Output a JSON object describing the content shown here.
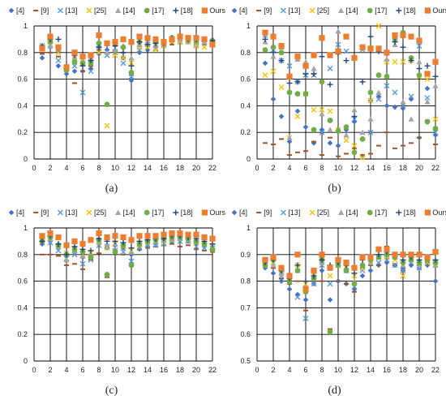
{
  "legend": [
    {
      "label": "[4]",
      "marker": "diamond",
      "color": "#4472C4"
    },
    {
      "label": "[9]",
      "marker": "dash",
      "color": "#A5502A"
    },
    {
      "label": "[13]",
      "marker": "x",
      "color": "#5B9BD5"
    },
    {
      "label": "[25]",
      "marker": "x",
      "color": "#F4C20D"
    },
    {
      "label": "[14]",
      "marker": "triangle",
      "color": "#A5A5A5"
    },
    {
      "label": "[17]",
      "marker": "circle",
      "color": "#70AD47"
    },
    {
      "label": "[18]",
      "marker": "plus",
      "color": "#264478"
    },
    {
      "label": "Ours",
      "marker": "square",
      "color": "#ED7D31"
    }
  ],
  "chart_data": [
    {
      "type": "scatter",
      "id": "a",
      "caption": "(a)",
      "xlim": [
        0,
        22
      ],
      "ylim": [
        0,
        1
      ],
      "xticks": [
        "0",
        "2",
        "4",
        "6",
        "8",
        "10",
        "12",
        "14",
        "16",
        "18",
        "20",
        "22"
      ],
      "yticks": [
        "0",
        "0.2",
        "0.4",
        "0.6",
        "0.8",
        "1"
      ],
      "x": [
        1,
        2,
        3,
        4,
        5,
        6,
        7,
        8,
        9,
        10,
        11,
        12,
        13,
        14,
        15,
        16,
        17,
        18,
        19,
        20,
        21,
        22
      ],
      "series": [
        {
          "name": "[4]",
          "values": [
            0.76,
            0.84,
            0.7,
            0.64,
            0.66,
            0.66,
            0.68,
            0.79,
            0.82,
            0.81,
            0.76,
            0.59,
            0.8,
            0.82,
            0.84,
            0.86,
            0.88,
            0.89,
            0.88,
            0.87,
            0.89,
            0.87
          ]
        },
        {
          "name": "[9]",
          "values": [
            0.79,
            0.8,
            0.77,
            0.66,
            0.57,
            0.66,
            0.7,
            0.82,
            0.4,
            0.82,
            0.8,
            0.63,
            0.85,
            0.85,
            0.85,
            0.87,
            0.86,
            0.87,
            0.88,
            0.86,
            0.86,
            0.85
          ]
        },
        {
          "name": "[13]",
          "values": [
            0.85,
            0.86,
            0.74,
            0.68,
            0.7,
            0.5,
            0.66,
            0.86,
            0.78,
            0.8,
            0.72,
            0.62,
            0.82,
            0.86,
            0.83,
            0.86,
            0.88,
            0.88,
            0.88,
            0.86,
            0.87,
            0.86
          ]
        },
        {
          "name": "[25]",
          "values": [
            0.84,
            0.88,
            0.8,
            0.69,
            0.76,
            0.72,
            0.75,
            0.8,
            0.25,
            0.78,
            0.76,
            0.72,
            0.84,
            0.84,
            0.82,
            0.85,
            0.88,
            0.88,
            0.88,
            0.85,
            0.84,
            0.86
          ]
        },
        {
          "name": "[14]",
          "values": [
            0.83,
            0.85,
            0.82,
            0.69,
            0.77,
            0.74,
            0.76,
            0.84,
            0.8,
            0.82,
            0.85,
            0.76,
            0.86,
            0.87,
            0.86,
            0.87,
            0.9,
            0.9,
            0.89,
            0.88,
            0.88,
            0.88
          ]
        },
        {
          "name": "[17]",
          "values": [
            0.84,
            0.88,
            0.83,
            0.67,
            0.73,
            0.72,
            0.72,
            0.87,
            0.41,
            0.86,
            0.84,
            0.65,
            0.88,
            0.9,
            0.88,
            0.88,
            0.91,
            0.92,
            0.9,
            0.89,
            0.9,
            0.89
          ]
        },
        {
          "name": "[18]",
          "values": [
            0.85,
            0.9,
            0.9,
            0.7,
            0.78,
            0.7,
            0.74,
            0.84,
            0.86,
            0.85,
            0.8,
            0.7,
            0.88,
            0.86,
            0.87,
            0.87,
            0.91,
            0.93,
            0.9,
            0.9,
            0.9,
            0.89
          ]
        },
        {
          "name": "Ours",
          "values": [
            0.83,
            0.92,
            0.84,
            0.69,
            0.8,
            0.77,
            0.78,
            0.93,
            0.87,
            0.88,
            0.9,
            0.88,
            0.92,
            0.91,
            0.9,
            0.88,
            0.9,
            0.92,
            0.91,
            0.91,
            0.9,
            0.86
          ]
        }
      ]
    },
    {
      "type": "scatter",
      "id": "b",
      "caption": "(b)",
      "xlim": [
        0,
        22
      ],
      "ylim": [
        0,
        1
      ],
      "xticks": [
        "0",
        "2",
        "4",
        "6",
        "8",
        "10",
        "12",
        "14",
        "16",
        "18",
        "20",
        "22"
      ],
      "yticks": [
        "0",
        "0.2",
        "0.4",
        "0.6",
        "0.8",
        "1"
      ],
      "x": [
        1,
        2,
        3,
        4,
        5,
        6,
        7,
        8,
        9,
        10,
        11,
        12,
        13,
        14,
        15,
        16,
        17,
        18,
        19,
        20,
        21,
        22
      ],
      "series": [
        {
          "name": "[4]",
          "values": [
            0.72,
            0.45,
            0.32,
            0.13,
            0.36,
            0.24,
            0.12,
            0.22,
            0.12,
            0.1,
            0.22,
            0.28,
            0.02,
            0.44,
            0.47,
            0.4,
            0.39,
            0.38,
            0.45,
            0.16,
            0.53,
            0.18
          ]
        },
        {
          "name": "[9]",
          "values": [
            0.12,
            0.11,
            0.15,
            0.03,
            0.05,
            0.06,
            0.13,
            0.03,
            0.16,
            0.02,
            0.04,
            0.08,
            0.03,
            0.04,
            0.1,
            0.2,
            0.08,
            0.1,
            0.12,
            0.16,
            0.29,
            0.11
          ]
        },
        {
          "name": "[13]",
          "values": [
            0.93,
            0.82,
            0.74,
            0.7,
            0.58,
            0.63,
            0.63,
            0.2,
            0.68,
            0.86,
            0.81,
            0.3,
            0.82,
            0.2,
            0.45,
            0.55,
            0.5,
            0.4,
            0.47,
            0.85,
            0.46,
            0.2
          ]
        },
        {
          "name": "[25]",
          "values": [
            0.63,
            0.66,
            0.54,
            0.16,
            0.32,
            0.49,
            0.37,
            0.37,
            0.36,
            0.22,
            0.14,
            0.1,
            0.01,
            0.44,
            1.0,
            0.73,
            0.73,
            0.73,
            0.74,
            0.62,
            0.6,
            0.3
          ]
        },
        {
          "name": "[14]",
          "values": [
            0.88,
            0.77,
            0.84,
            0.16,
            0.75,
            0.73,
            0.68,
            0.34,
            0.22,
            0.96,
            0.18,
            0.37,
            0.2,
            0.3,
            0.5,
            0.75,
            0.86,
            0.43,
            0.3,
            0.73,
            0.43,
            0.55
          ]
        },
        {
          "name": "[17]",
          "values": [
            0.82,
            0.84,
            0.8,
            0.5,
            0.49,
            0.49,
            0.22,
            0.58,
            0.29,
            0.21,
            0.24,
            0.05,
            0.15,
            0.5,
            0.63,
            0.62,
            0.9,
            0.95,
            0.76,
            0.63,
            0.28,
            0.23
          ]
        },
        {
          "name": "[18]",
          "values": [
            0.9,
            0.8,
            0.74,
            0.57,
            0.58,
            0.64,
            0.64,
            0.77,
            0.56,
            0.79,
            0.74,
            0.32,
            0.58,
            0.92,
            0.81,
            0.8,
            0.88,
            0.84,
            0.74,
            0.68,
            0.7,
            0.62
          ]
        },
        {
          "name": "Ours",
          "values": [
            0.95,
            0.92,
            0.85,
            0.62,
            0.77,
            0.7,
            0.78,
            0.91,
            0.78,
            0.81,
            0.92,
            0.76,
            0.84,
            0.83,
            0.83,
            0.8,
            0.93,
            0.93,
            0.92,
            0.89,
            0.64,
            0.73
          ]
        }
      ]
    },
    {
      "type": "scatter",
      "id": "c",
      "caption": "(c)",
      "xlim": [
        0,
        22
      ],
      "ylim": [
        0,
        1
      ],
      "xticks": [
        "0",
        "2",
        "4",
        "6",
        "8",
        "10",
        "12",
        "14",
        "16",
        "18",
        "20",
        "22"
      ],
      "yticks": [
        "0",
        "0.2",
        "0.4",
        "0.6",
        "0.8",
        "1"
      ],
      "x": [
        1,
        2,
        3,
        4,
        5,
        6,
        7,
        8,
        9,
        10,
        11,
        12,
        13,
        14,
        15,
        16,
        17,
        18,
        19,
        20,
        21,
        22
      ],
      "series": [
        {
          "name": "[4]",
          "values": [
            0.88,
            0.9,
            0.85,
            0.79,
            0.82,
            0.78,
            0.8,
            0.88,
            0.85,
            0.87,
            0.85,
            0.8,
            0.84,
            0.86,
            0.88,
            0.9,
            0.9,
            0.91,
            0.9,
            0.88,
            0.86,
            0.84
          ]
        },
        {
          "name": "[9]",
          "values": [
            0.8,
            0.8,
            0.79,
            0.72,
            0.73,
            0.69,
            0.76,
            0.81,
            0.63,
            0.83,
            0.8,
            0.73,
            0.84,
            0.85,
            0.86,
            0.87,
            0.88,
            0.86,
            0.87,
            0.84,
            0.83,
            0.82
          ]
        },
        {
          "name": "[13]",
          "values": [
            0.89,
            0.89,
            0.83,
            0.77,
            0.8,
            0.73,
            0.76,
            0.87,
            0.86,
            0.83,
            0.82,
            0.75,
            0.85,
            0.87,
            0.87,
            0.88,
            0.9,
            0.9,
            0.9,
            0.86,
            0.85,
            0.85
          ]
        },
        {
          "name": "[25]",
          "values": [
            0.9,
            0.92,
            0.86,
            0.81,
            0.84,
            0.8,
            0.81,
            0.89,
            0.85,
            0.88,
            0.86,
            0.83,
            0.87,
            0.89,
            0.9,
            0.9,
            0.91,
            0.92,
            0.91,
            0.89,
            0.88,
            0.86
          ]
        },
        {
          "name": "[14]",
          "values": [
            0.91,
            0.92,
            0.86,
            0.76,
            0.83,
            0.79,
            0.8,
            0.9,
            0.87,
            0.88,
            0.87,
            0.82,
            0.88,
            0.9,
            0.9,
            0.91,
            0.92,
            0.92,
            0.91,
            0.9,
            0.88,
            0.86
          ]
        },
        {
          "name": "[17]",
          "values": [
            0.9,
            0.93,
            0.87,
            0.8,
            0.84,
            0.82,
            0.78,
            0.91,
            0.65,
            0.82,
            0.87,
            0.72,
            0.88,
            0.9,
            0.91,
            0.92,
            0.93,
            0.93,
            0.92,
            0.9,
            0.88,
            0.84
          ]
        },
        {
          "name": "[18]",
          "values": [
            0.9,
            0.94,
            0.88,
            0.8,
            0.86,
            0.84,
            0.83,
            0.92,
            0.9,
            0.9,
            0.89,
            0.85,
            0.9,
            0.91,
            0.92,
            0.92,
            0.94,
            0.94,
            0.93,
            0.92,
            0.9,
            0.88
          ]
        },
        {
          "name": "Ours",
          "values": [
            0.94,
            0.96,
            0.93,
            0.87,
            0.9,
            0.88,
            0.91,
            0.96,
            0.93,
            0.94,
            0.93,
            0.91,
            0.94,
            0.94,
            0.94,
            0.95,
            0.96,
            0.96,
            0.95,
            0.95,
            0.93,
            0.92
          ]
        }
      ]
    },
    {
      "type": "scatter",
      "id": "d",
      "caption": "(d)",
      "xlim": [
        0,
        22
      ],
      "ylim": [
        0.5,
        1
      ],
      "xticks": [
        "0",
        "2",
        "4",
        "6",
        "8",
        "10",
        "12",
        "14",
        "16",
        "18",
        "20",
        "22"
      ],
      "yticks": [
        "0.5",
        "0.6",
        "0.7",
        "0.8",
        "0.9",
        "1"
      ],
      "x": [
        1,
        2,
        3,
        4,
        5,
        6,
        7,
        8,
        9,
        10,
        11,
        12,
        13,
        14,
        15,
        16,
        17,
        18,
        19,
        20,
        21,
        22
      ],
      "series": [
        {
          "name": "[4]",
          "values": [
            0.85,
            0.83,
            0.8,
            0.77,
            0.75,
            0.73,
            0.79,
            0.84,
            0.73,
            0.8,
            0.79,
            0.77,
            0.82,
            0.84,
            0.86,
            0.87,
            0.86,
            0.85,
            0.86,
            0.85,
            0.86,
            0.8
          ]
        },
        {
          "name": "[9]",
          "values": [
            0.86,
            0.85,
            0.81,
            0.79,
            0.8,
            0.69,
            0.8,
            0.8,
            0.62,
            0.8,
            0.79,
            0.76,
            0.85,
            0.86,
            0.86,
            0.93,
            0.86,
            0.84,
            0.88,
            0.86,
            0.87,
            0.87
          ]
        },
        {
          "name": "[13]",
          "values": [
            0.86,
            0.87,
            0.82,
            0.8,
            0.74,
            0.66,
            0.79,
            0.86,
            0.79,
            0.86,
            0.84,
            0.78,
            0.84,
            0.87,
            0.87,
            0.88,
            0.86,
            0.84,
            0.87,
            0.85,
            0.87,
            0.86
          ]
        },
        {
          "name": "[25]",
          "values": [
            0.86,
            0.87,
            0.83,
            0.8,
            0.86,
            0.79,
            0.82,
            0.88,
            0.82,
            0.86,
            0.85,
            0.82,
            0.85,
            0.88,
            0.89,
            0.89,
            0.88,
            0.82,
            0.88,
            0.86,
            0.87,
            0.87
          ]
        },
        {
          "name": "[14]",
          "values": [
            0.87,
            0.86,
            0.83,
            0.8,
            0.84,
            0.78,
            0.82,
            0.87,
            0.85,
            0.86,
            0.85,
            0.8,
            0.86,
            0.87,
            0.89,
            0.9,
            0.89,
            0.86,
            0.88,
            0.86,
            0.88,
            0.86
          ]
        },
        {
          "name": "[17]",
          "values": [
            0.86,
            0.88,
            0.84,
            0.8,
            0.84,
            0.76,
            0.81,
            0.88,
            0.61,
            0.86,
            0.84,
            0.79,
            0.86,
            0.88,
            0.89,
            0.9,
            0.89,
            0.87,
            0.88,
            0.87,
            0.88,
            0.87
          ]
        },
        {
          "name": "[18]",
          "values": [
            0.87,
            0.88,
            0.84,
            0.81,
            0.86,
            0.8,
            0.82,
            0.88,
            0.86,
            0.87,
            0.86,
            0.83,
            0.88,
            0.89,
            0.9,
            0.91,
            0.9,
            0.88,
            0.89,
            0.88,
            0.89,
            0.88
          ]
        },
        {
          "name": "Ours",
          "values": [
            0.88,
            0.89,
            0.85,
            0.82,
            0.9,
            0.77,
            0.84,
            0.9,
            0.85,
            0.88,
            0.87,
            0.85,
            0.89,
            0.89,
            0.92,
            0.92,
            0.9,
            0.9,
            0.9,
            0.9,
            0.89,
            0.91
          ]
        }
      ]
    }
  ]
}
